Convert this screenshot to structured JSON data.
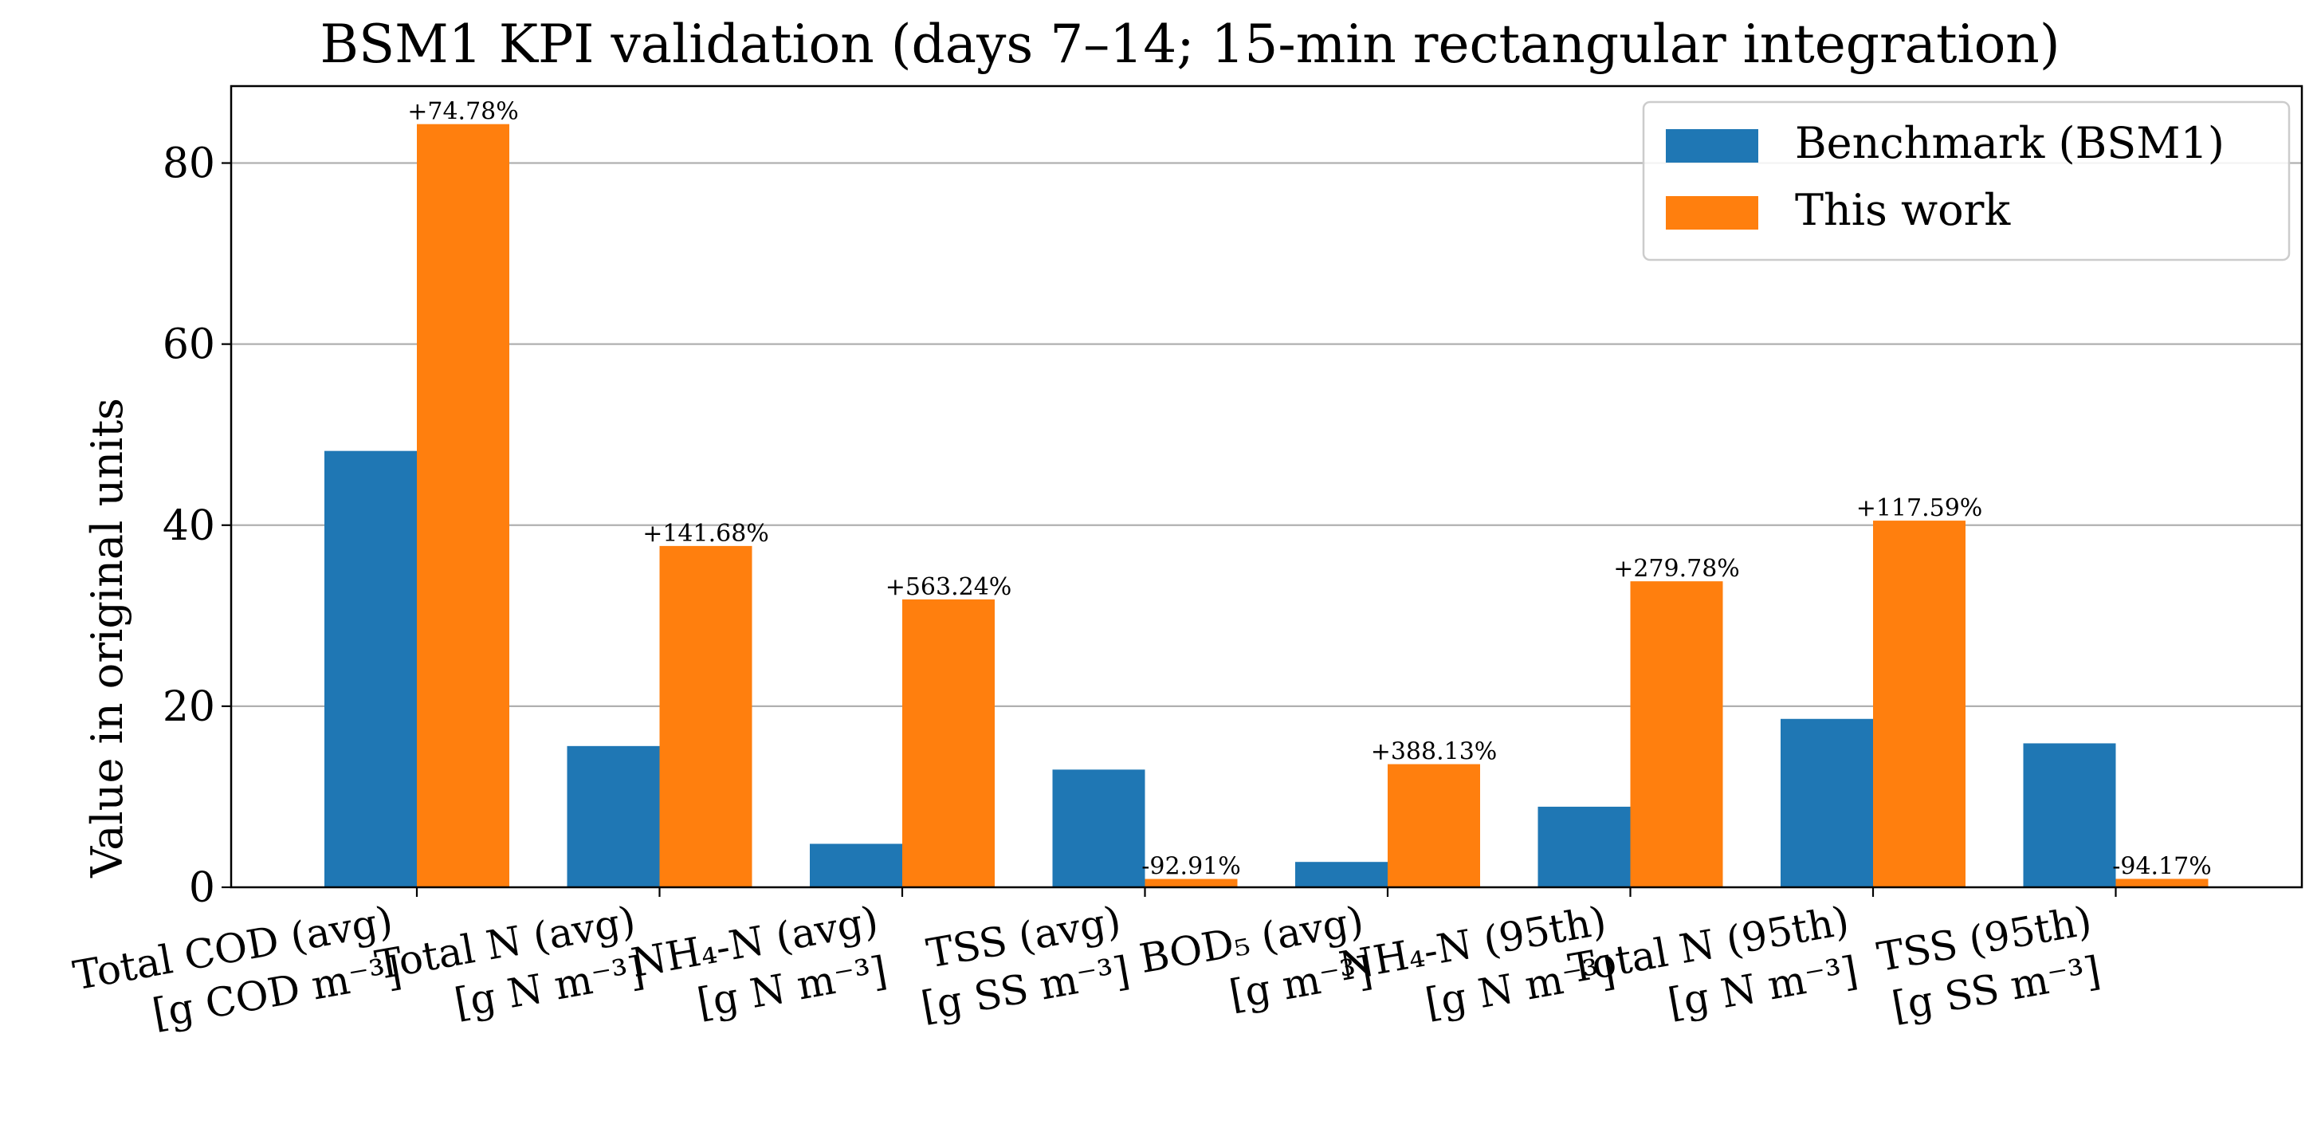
{
  "chart_data": {
    "type": "bar",
    "title": "BSM1 KPI validation (days 7–14; 15-min rectangular integration)",
    "xlabel": "",
    "ylabel": "Value in original units",
    "ylim": [
      0,
      88.5
    ],
    "yticks": [
      0,
      20,
      40,
      60,
      80
    ],
    "grid": "y",
    "legend_position": "top-right",
    "categories": [
      [
        "Total COD (avg)",
        "[g COD m⁻³]"
      ],
      [
        "Total N (avg)",
        "[g N m⁻³]"
      ],
      [
        "NH₄-N (avg)",
        "[g N m⁻³]"
      ],
      [
        "TSS (avg)",
        "[g SS m⁻³]"
      ],
      [
        "BOD₅ (avg)",
        "[g m⁻³]"
      ],
      [
        "NH₄-N (95th)",
        "[g N m⁻³]"
      ],
      [
        "Total N (95th)",
        "[g N m⁻³]"
      ],
      [
        "TSS (95th)",
        "[g SS m⁻³]"
      ]
    ],
    "series": [
      {
        "name": "Benchmark (BSM1)",
        "color": "#1f77b4",
        "values": [
          48.2,
          15.6,
          4.8,
          13.0,
          2.8,
          8.9,
          18.6,
          15.9
        ]
      },
      {
        "name": "This work",
        "color": "#ff7f0e",
        "values": [
          84.3,
          37.7,
          31.8,
          0.92,
          13.6,
          33.8,
          40.5,
          0.93
        ]
      }
    ],
    "annotations": [
      "+74.78%",
      "+141.68%",
      "+563.24%",
      "-92.91%",
      "+388.13%",
      "+279.78%",
      "+117.59%",
      "-94.17%"
    ]
  }
}
